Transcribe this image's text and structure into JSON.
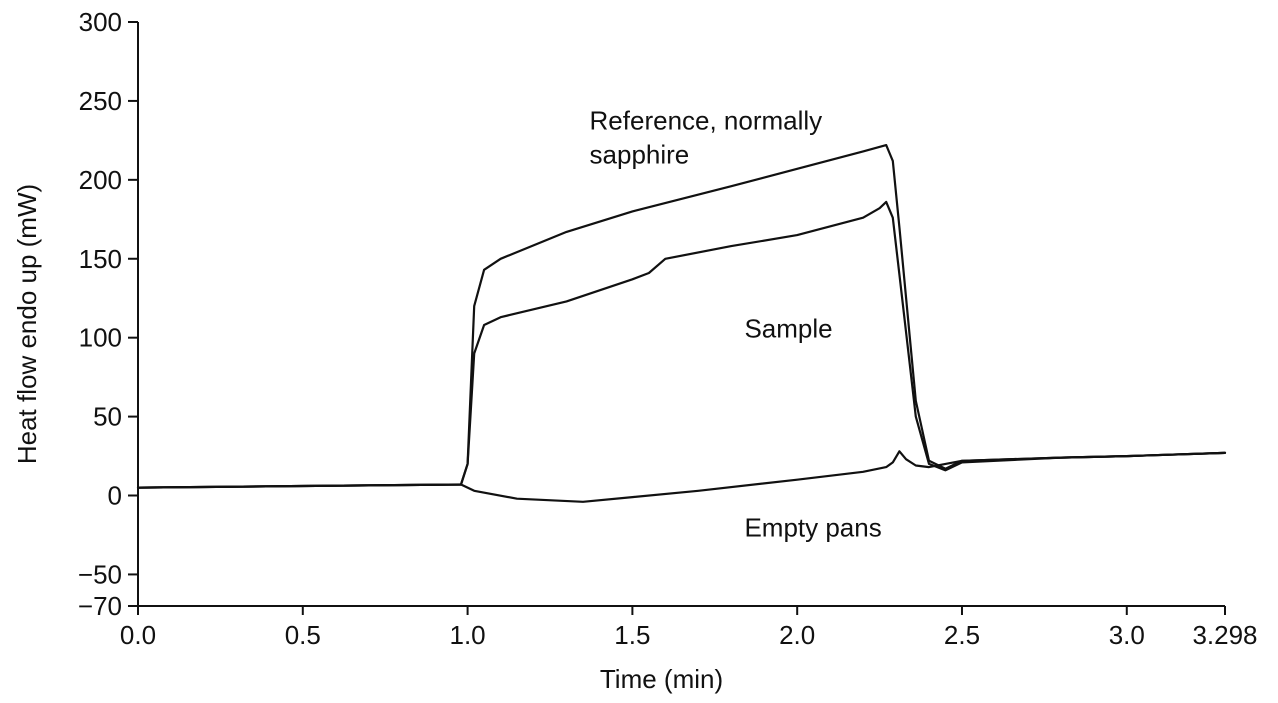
{
  "chart_data": {
    "type": "line",
    "xlabel": "Time (min)",
    "ylabel": "Heat flow endo up (mW)",
    "xlim": [
      0.0,
      3.298
    ],
    "ylim": [
      -70,
      300
    ],
    "x_ticks": [
      {
        "value": 0.0,
        "label": "0.0"
      },
      {
        "value": 0.5,
        "label": "0.5"
      },
      {
        "value": 1.0,
        "label": "1.0"
      },
      {
        "value": 1.5,
        "label": "1.5"
      },
      {
        "value": 2.0,
        "label": "2.0"
      },
      {
        "value": 2.5,
        "label": "2.5"
      },
      {
        "value": 3.0,
        "label": "3.0"
      },
      {
        "value": 3.298,
        "label": "3.298"
      }
    ],
    "y_ticks": [
      {
        "value": 300,
        "label": "300"
      },
      {
        "value": 250,
        "label": "250"
      },
      {
        "value": 200,
        "label": "200"
      },
      {
        "value": 150,
        "label": "150"
      },
      {
        "value": 100,
        "label": "100"
      },
      {
        "value": 50,
        "label": "50"
      },
      {
        "value": 0,
        "label": "0"
      },
      {
        "value": -50,
        "label": "−50"
      },
      {
        "value": -70,
        "label": "−70"
      }
    ],
    "annotations": [
      {
        "id": "reference-label",
        "lines": [
          "Reference, normally",
          "sapphire"
        ],
        "x": 1.37,
        "y": 232
      },
      {
        "id": "sample-label",
        "lines": [
          "Sample"
        ],
        "x": 1.84,
        "y": 100
      },
      {
        "id": "empty-pans-label",
        "lines": [
          "Empty pans"
        ],
        "x": 1.84,
        "y": -26
      }
    ],
    "grid": false,
    "series": [
      {
        "id": "reference",
        "x": [
          0.0,
          0.5,
          0.98,
          1.0,
          1.02,
          1.05,
          1.1,
          1.3,
          1.5,
          1.8,
          2.0,
          2.2,
          2.27,
          2.29,
          2.31,
          2.36,
          2.4,
          2.45,
          2.5,
          2.8,
          3.0,
          3.298
        ],
        "values": [
          5,
          6,
          7,
          20,
          120,
          143,
          150,
          167,
          180,
          196,
          207,
          218,
          222,
          212,
          170,
          60,
          22,
          17,
          22,
          24,
          25,
          27
        ]
      },
      {
        "id": "sample",
        "x": [
          0.0,
          0.5,
          0.98,
          1.0,
          1.02,
          1.05,
          1.1,
          1.3,
          1.5,
          1.55,
          1.6,
          1.8,
          2.0,
          2.2,
          2.25,
          2.27,
          2.29,
          2.31,
          2.36,
          2.4,
          2.45,
          2.5,
          2.8,
          3.0,
          3.298
        ],
        "values": [
          5,
          6,
          7,
          20,
          90,
          108,
          113,
          123,
          137,
          141,
          150,
          158,
          165,
          176,
          182,
          186,
          176,
          140,
          50,
          20,
          16,
          21,
          24,
          25,
          27
        ]
      },
      {
        "id": "empty-pans",
        "x": [
          0.0,
          0.5,
          0.98,
          1.02,
          1.15,
          1.35,
          1.5,
          1.7,
          2.0,
          2.2,
          2.27,
          2.29,
          2.31,
          2.33,
          2.36,
          2.4,
          2.5,
          2.8,
          3.0,
          3.298
        ],
        "values": [
          5,
          6,
          7,
          3,
          -2,
          -4,
          -1,
          3,
          10,
          15,
          18,
          21,
          28,
          23,
          19,
          18,
          22,
          24,
          25,
          27
        ]
      }
    ]
  }
}
